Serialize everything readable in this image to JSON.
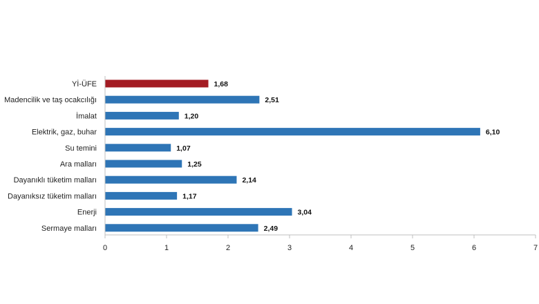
{
  "chart_data": {
    "type": "bar",
    "orientation": "horizontal",
    "categories": [
      "Yİ-ÜFE",
      "Madencilik ve taş ocakcılığı",
      "İmalat",
      "Elektrik, gaz, buhar",
      "Su temini",
      "Ara malları",
      "Dayanıklı tüketim malları",
      "Dayanıksız tüketim malları",
      "Enerji",
      "Sermaye malları"
    ],
    "values": [
      1.68,
      2.51,
      1.2,
      6.1,
      1.07,
      1.25,
      2.14,
      1.17,
      3.04,
      2.49
    ],
    "value_labels": [
      "1,68",
      "2,51",
      "1,20",
      "6,10",
      "1,07",
      "1,25",
      "2,14",
      "1,17",
      "3,04",
      "2,49"
    ],
    "xlim": [
      0,
      7
    ],
    "xticks": [
      "0",
      "1",
      "2",
      "3",
      "4",
      "5",
      "6",
      "7"
    ],
    "grid": false,
    "colors": {
      "highlight": "#a31b22",
      "default": "#2e75b6",
      "axis": "#bfbfbf"
    },
    "highlight_index": 0
  }
}
